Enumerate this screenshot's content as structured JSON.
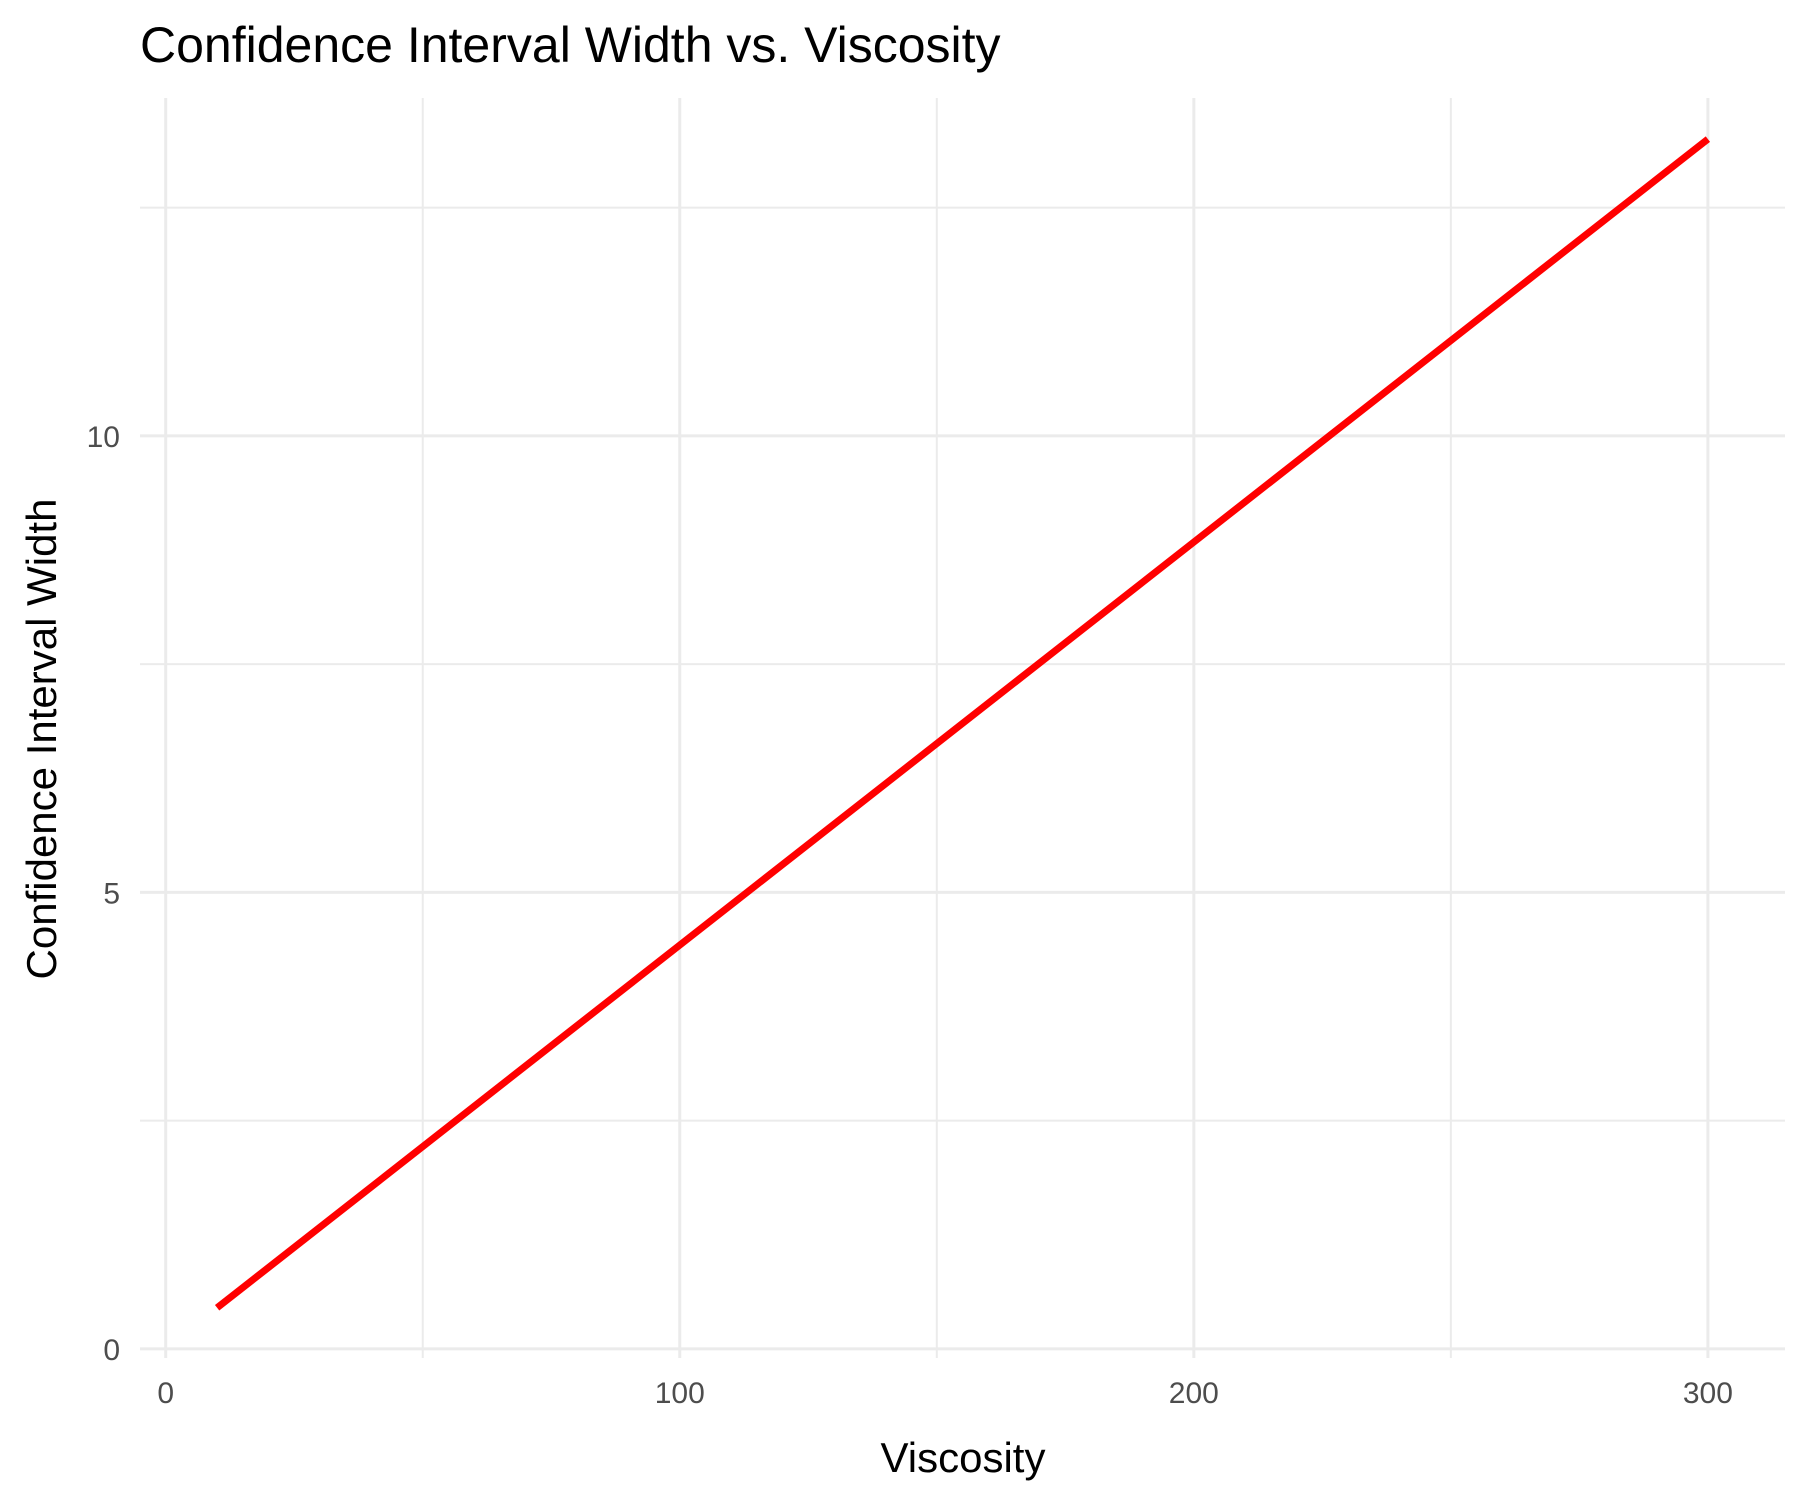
{
  "chart_data": {
    "type": "line",
    "title": "Confidence Interval Width vs. Viscosity",
    "xlabel": "Viscosity",
    "ylabel": "Confidence Interval Width",
    "xlim": [
      -5,
      315
    ],
    "ylim": [
      -0.1,
      13.7
    ],
    "x_ticks": [
      0,
      100,
      200,
      300
    ],
    "x_tick_labels": [
      "0",
      "100",
      "200",
      "300"
    ],
    "x_minor": [
      50,
      150,
      250
    ],
    "y_ticks": [
      0,
      5,
      10
    ],
    "y_tick_labels": [
      "0",
      "5",
      "10"
    ],
    "y_minor": [
      2.5,
      7.5,
      12.5
    ],
    "grid": true,
    "legend": "none",
    "series": [
      {
        "color": "#ff0000",
        "x": [
          10,
          300
        ],
        "y": [
          0.45,
          13.25
        ]
      }
    ]
  }
}
